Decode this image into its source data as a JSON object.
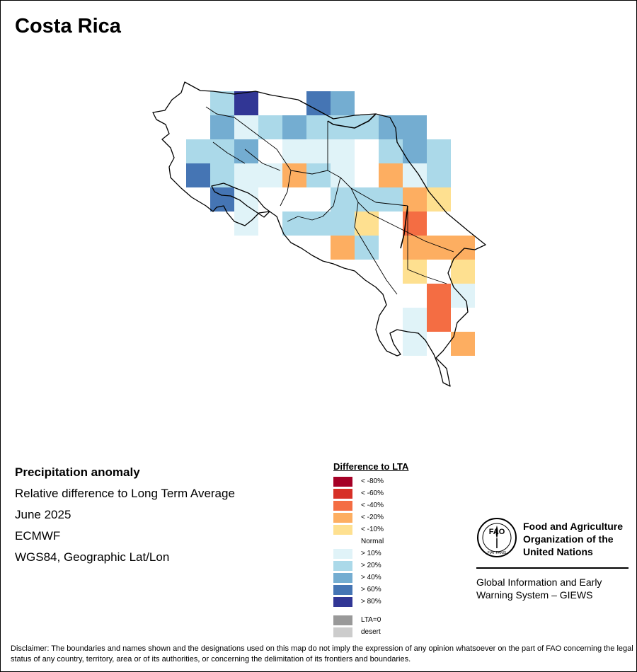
{
  "title": "Costa Rica",
  "info": {
    "title": "Precipitation anomaly",
    "lines": [
      "Relative difference to Long Term Average",
      "June 2025",
      "ECMWF",
      "WGS84, Geographic Lat/Lon"
    ]
  },
  "legend": {
    "title": "Difference to LTA",
    "items": [
      {
        "label": "< -80%",
        "color": "#a50026"
      },
      {
        "label": "< -60%",
        "color": "#d73027"
      },
      {
        "label": "< -40%",
        "color": "#f46d43"
      },
      {
        "label": "< -20%",
        "color": "#fdae61"
      },
      {
        "label": "< -10%",
        "color": "#fee090"
      },
      {
        "label": "Normal",
        "color": "#ffffff"
      },
      {
        "label": "> 10%",
        "color": "#e0f3f8"
      },
      {
        "label": "> 20%",
        "color": "#abd9e9"
      },
      {
        "label": "> 40%",
        "color": "#74add1"
      },
      {
        "label": "> 60%",
        "color": "#4575b4"
      },
      {
        "label": "> 80%",
        "color": "#313695"
      }
    ],
    "extra": [
      {
        "label": "LTA=0",
        "color": "#999999"
      },
      {
        "label": "desert",
        "color": "#cccccc"
      }
    ]
  },
  "org": {
    "name_lines": [
      "Food and Agriculture",
      "Organization of the",
      "United Nations"
    ],
    "logo_letters": "FAO",
    "logo_motto": "FIAT PANIS",
    "system_lines": [
      "Global Information and Early",
      "Warning System – GIEWS"
    ]
  },
  "disclaimer": "Disclaimer: The boundaries and names shown and the designations used on this map do not imply the expression of any opinion whatsoever on the part of FAO concerning the legal status of any country, territory, area or of its authorities, or concerning the delimitation of its frontiers and boundaries.",
  "grid": {
    "rows": [
      "--------------------",
      "-++-****--------------",
      "-"
    ]
  },
  "map_cells": [
    {
      "r": 0,
      "c": 2,
      "v": 7
    },
    {
      "r": 0,
      "c": 3,
      "v": 10
    },
    {
      "r": 0,
      "c": 6,
      "v": 9
    },
    {
      "r": 0,
      "c": 7,
      "v": 8
    },
    {
      "r": 1,
      "c": 2,
      "v": 8
    },
    {
      "r": 1,
      "c": 3,
      "v": 6
    },
    {
      "r": 1,
      "c": 4,
      "v": 7
    },
    {
      "r": 1,
      "c": 5,
      "v": 8
    },
    {
      "r": 1,
      "c": 6,
      "v": 7
    },
    {
      "r": 1,
      "c": 7,
      "v": 7
    },
    {
      "r": 1,
      "c": 8,
      "v": 7
    },
    {
      "r": 1,
      "c": 9,
      "v": 8
    },
    {
      "r": 1,
      "c": 10,
      "v": 8
    },
    {
      "r": 2,
      "c": 1,
      "v": 7
    },
    {
      "r": 2,
      "c": 2,
      "v": 7
    },
    {
      "r": 2,
      "c": 3,
      "v": 8
    },
    {
      "r": 2,
      "c": 4,
      "v": 5
    },
    {
      "r": 2,
      "c": 5,
      "v": 6
    },
    {
      "r": 2,
      "c": 6,
      "v": 6
    },
    {
      "r": 2,
      "c": 7,
      "v": 6
    },
    {
      "r": 2,
      "c": 8,
      "v": 5
    },
    {
      "r": 2,
      "c": 9,
      "v": 7
    },
    {
      "r": 2,
      "c": 10,
      "v": 8
    },
    {
      "r": 2,
      "c": 11,
      "v": 7
    },
    {
      "r": 3,
      "c": 1,
      "v": 9
    },
    {
      "r": 3,
      "c": 2,
      "v": 7
    },
    {
      "r": 3,
      "c": 3,
      "v": 6
    },
    {
      "r": 3,
      "c": 4,
      "v": 6
    },
    {
      "r": 3,
      "c": 5,
      "v": 3
    },
    {
      "r": 3,
      "c": 6,
      "v": 7
    },
    {
      "r": 3,
      "c": 7,
      "v": 6
    },
    {
      "r": 3,
      "c": 8,
      "v": 5
    },
    {
      "r": 3,
      "c": 9,
      "v": 3
    },
    {
      "r": 3,
      "c": 10,
      "v": 6
    },
    {
      "r": 3,
      "c": 11,
      "v": 7
    },
    {
      "r": 4,
      "c": 2,
      "v": 9
    },
    {
      "r": 4,
      "c": 3,
      "v": 6
    },
    {
      "r": 4,
      "c": 7,
      "v": 7
    },
    {
      "r": 4,
      "c": 8,
      "v": 7
    },
    {
      "r": 4,
      "c": 9,
      "v": 7
    },
    {
      "r": 4,
      "c": 10,
      "v": 3
    },
    {
      "r": 4,
      "c": 11,
      "v": 4
    },
    {
      "r": 5,
      "c": 3,
      "v": 6
    },
    {
      "r": 5,
      "c": 5,
      "v": 7
    },
    {
      "r": 5,
      "c": 6,
      "v": 7
    },
    {
      "r": 5,
      "c": 7,
      "v": 7
    },
    {
      "r": 5,
      "c": 8,
      "v": 4
    },
    {
      "r": 5,
      "c": 9,
      "v": 5
    },
    {
      "r": 5,
      "c": 10,
      "v": 2
    },
    {
      "r": 6,
      "c": 7,
      "v": 3
    },
    {
      "r": 6,
      "c": 8,
      "v": 7
    },
    {
      "r": 6,
      "c": 10,
      "v": 3
    },
    {
      "r": 6,
      "c": 11,
      "v": 3
    },
    {
      "r": 6,
      "c": 12,
      "v": 3
    },
    {
      "r": 7,
      "c": 10,
      "v": 4
    },
    {
      "r": 7,
      "c": 12,
      "v": 4
    },
    {
      "r": 8,
      "c": 11,
      "v": 2
    },
    {
      "r": 8,
      "c": 12,
      "v": 6
    },
    {
      "r": 9,
      "c": 10,
      "v": 6
    },
    {
      "r": 9,
      "c": 11,
      "v": 2
    },
    {
      "r": 10,
      "c": 10,
      "v": 6
    },
    {
      "r": 10,
      "c": 12,
      "v": 3
    }
  ]
}
